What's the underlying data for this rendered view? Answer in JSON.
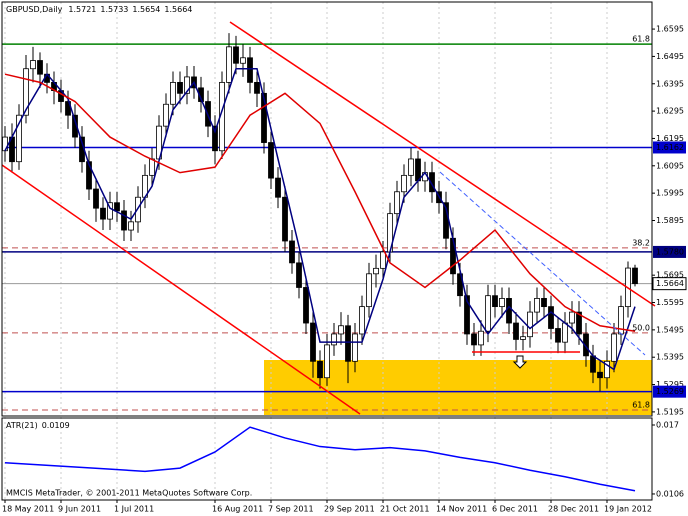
{
  "chart_data": {
    "type": "candlestick",
    "title": "GBPUSD,Daily",
    "watermark": "MMCIS MetaTrader, © 2001-2011 MetaQuotes Software Corp.",
    "categories": [
      "18 May 2011",
      null,
      null,
      null,
      null,
      null,
      null,
      null,
      "9 Jun 2011",
      null,
      null,
      null,
      null,
      null,
      null,
      null,
      "1 Jul 2011",
      null,
      null,
      null,
      null,
      null,
      null,
      null,
      null,
      null,
      null,
      null,
      null,
      null,
      "16 Aug 2011",
      null,
      null,
      null,
      null,
      null,
      null,
      null,
      "7 Sep 2011",
      null,
      null,
      null,
      null,
      null,
      null,
      null,
      "29 Sep 2011",
      null,
      null,
      null,
      null,
      null,
      null,
      null,
      "21 Oct 2011",
      null,
      null,
      null,
      null,
      null,
      null,
      null,
      "14 Nov 2011",
      null,
      null,
      null,
      null,
      null,
      null,
      null,
      "6 Dec 2011",
      null,
      null,
      null,
      null,
      null,
      null,
      null,
      "28 Dec 2011",
      null,
      null,
      null,
      null,
      null,
      null,
      null,
      "19 Jan 2012",
      null,
      null,
      null,
      null
    ],
    "open": [
      1.615,
      1.62,
      1.611,
      1.628,
      1.645,
      1.648,
      1.643,
      1.64,
      1.637,
      1.633,
      1.628,
      1.62,
      1.611,
      1.601,
      1.594,
      1.59,
      1.596,
      1.593,
      1.586,
      1.589,
      1.598,
      1.606,
      1.612,
      1.624,
      1.632,
      1.64,
      1.636,
      1.642,
      1.638,
      1.633,
      1.624,
      1.615,
      1.64,
      1.653,
      1.647,
      1.649,
      1.64,
      1.636,
      1.618,
      1.605,
      1.598,
      1.582,
      1.574,
      1.565,
      1.552,
      1.538,
      1.532,
      1.544,
      1.548,
      1.551,
      1.538,
      1.548,
      1.558,
      1.57,
      1.572,
      1.578,
      1.592,
      1.6,
      1.606,
      1.612,
      1.604,
      1.607,
      1.6,
      1.596,
      1.583,
      1.57,
      1.562,
      1.548,
      1.544,
      1.549,
      1.562,
      1.558,
      1.561,
      1.552,
      1.546,
      1.547,
      1.556,
      1.561,
      1.558,
      1.55,
      1.545,
      1.552,
      1.556,
      1.548,
      1.54,
      1.534,
      1.532,
      1.538,
      1.548,
      1.558,
      1.5721
    ],
    "high": [
      1.624,
      1.625,
      1.632,
      1.65,
      1.653,
      1.651,
      1.647,
      1.644,
      1.641,
      1.637,
      1.632,
      1.624,
      1.615,
      1.605,
      1.598,
      1.6,
      1.6,
      1.597,
      1.593,
      1.602,
      1.61,
      1.616,
      1.628,
      1.636,
      1.644,
      1.644,
      1.646,
      1.646,
      1.642,
      1.637,
      1.628,
      1.644,
      1.658,
      1.657,
      1.654,
      1.653,
      1.644,
      1.64,
      1.622,
      1.609,
      1.602,
      1.586,
      1.578,
      1.569,
      1.556,
      1.542,
      1.548,
      1.552,
      1.556,
      1.555,
      1.552,
      1.562,
      1.574,
      1.577,
      1.582,
      1.596,
      1.604,
      1.61,
      1.616,
      1.615,
      1.611,
      1.611,
      1.604,
      1.6,
      1.587,
      1.574,
      1.566,
      1.552,
      1.553,
      1.566,
      1.566,
      1.565,
      1.565,
      1.556,
      1.551,
      1.56,
      1.565,
      1.565,
      1.562,
      1.554,
      1.556,
      1.56,
      1.56,
      1.552,
      1.544,
      1.538,
      1.542,
      1.552,
      1.562,
      1.5745,
      1.5733
    ],
    "low": [
      1.611,
      1.607,
      1.608,
      1.625,
      1.64,
      1.638,
      1.636,
      1.632,
      1.629,
      1.623,
      1.616,
      1.607,
      1.597,
      1.589,
      1.586,
      1.586,
      1.589,
      1.582,
      1.582,
      1.585,
      1.594,
      1.602,
      1.608,
      1.62,
      1.628,
      1.632,
      1.632,
      1.634,
      1.629,
      1.62,
      1.61,
      1.612,
      1.636,
      1.643,
      1.642,
      1.636,
      1.631,
      1.614,
      1.601,
      1.594,
      1.578,
      1.57,
      1.561,
      1.548,
      1.532,
      1.528,
      1.529,
      1.54,
      1.544,
      1.53,
      1.534,
      1.544,
      1.554,
      1.565,
      1.568,
      1.574,
      1.588,
      1.596,
      1.602,
      1.6,
      1.6,
      1.596,
      1.592,
      1.579,
      1.566,
      1.558,
      1.544,
      1.54,
      1.54,
      1.545,
      1.554,
      1.554,
      1.548,
      1.542,
      1.542,
      1.543,
      1.552,
      1.554,
      1.546,
      1.541,
      1.541,
      1.548,
      1.544,
      1.536,
      1.53,
      1.527,
      1.528,
      1.534,
      1.544,
      1.554,
      1.5654
    ],
    "close": [
      1.62,
      1.611,
      1.628,
      1.645,
      1.648,
      1.643,
      1.64,
      1.637,
      1.633,
      1.628,
      1.62,
      1.611,
      1.601,
      1.594,
      1.59,
      1.596,
      1.593,
      1.586,
      1.589,
      1.598,
      1.606,
      1.612,
      1.624,
      1.632,
      1.64,
      1.636,
      1.642,
      1.638,
      1.633,
      1.624,
      1.615,
      1.64,
      1.653,
      1.647,
      1.649,
      1.64,
      1.636,
      1.618,
      1.605,
      1.598,
      1.582,
      1.574,
      1.565,
      1.552,
      1.538,
      1.532,
      1.544,
      1.548,
      1.551,
      1.538,
      1.548,
      1.558,
      1.57,
      1.572,
      1.578,
      1.592,
      1.6,
      1.606,
      1.612,
      1.604,
      1.607,
      1.6,
      1.596,
      1.583,
      1.57,
      1.562,
      1.548,
      1.544,
      1.549,
      1.562,
      1.558,
      1.561,
      1.552,
      1.546,
      1.547,
      1.556,
      1.561,
      1.558,
      1.55,
      1.545,
      1.552,
      1.556,
      1.548,
      1.54,
      1.534,
      1.532,
      1.538,
      1.548,
      1.558,
      1.5721,
      1.5664
    ],
    "ylim": [
      1.518,
      1.6694
    ],
    "yticks": [
      1.6595,
      1.6495,
      1.6395,
      1.6295,
      1.6195,
      1.6095,
      1.5995,
      1.5895,
      1.5695,
      1.5595,
      1.5495,
      1.5395,
      1.5295,
      1.5195
    ],
    "overlays": [
      {
        "color": "#000080",
        "x": [
          0,
          3,
          6,
          9,
          12,
          15,
          18,
          21,
          24,
          27,
          30,
          33,
          36,
          39,
          42,
          45,
          48,
          51,
          54,
          57,
          60,
          63,
          66,
          69,
          72,
          75,
          78,
          81,
          84,
          87,
          90
        ],
        "values": [
          1.615,
          1.63,
          1.643,
          1.634,
          1.61,
          1.594,
          1.59,
          1.602,
          1.63,
          1.64,
          1.622,
          1.645,
          1.645,
          1.612,
          1.58,
          1.545,
          1.545,
          1.545,
          1.568,
          1.598,
          1.607,
          1.594,
          1.56,
          1.548,
          1.558,
          1.55,
          1.556,
          1.55,
          1.54,
          1.535,
          1.558
        ]
      },
      {
        "color": "#e00000",
        "x": [
          0,
          5,
          10,
          15,
          20,
          25,
          30,
          35,
          40,
          45,
          50,
          55,
          60,
          65,
          70,
          75,
          80,
          85,
          90
        ],
        "values": [
          1.643,
          1.64,
          1.633,
          1.62,
          1.613,
          1.607,
          1.609,
          1.628,
          1.636,
          1.625,
          1.6,
          1.574,
          1.565,
          1.575,
          1.586,
          1.57,
          1.558,
          1.551,
          1.549
        ]
      }
    ],
    "levels": [
      {
        "value": 1.6162,
        "color": "#0000cc"
      },
      {
        "value": 1.578,
        "label": "1.5780",
        "color": "#000080"
      },
      {
        "value": 1.5269,
        "color": "#0000cc"
      }
    ],
    "fib_levels": [
      {
        "value": 1.654,
        "label": "61.8",
        "color": "#008000"
      },
      {
        "value": 1.5795,
        "label": "38.2",
        "color": "#c05050"
      },
      {
        "value": 1.5484,
        "label": "50.0",
        "color": "#c05050"
      },
      {
        "value": 1.5202,
        "label": "61.8",
        "color": "#c05050"
      }
    ],
    "atr": {
      "title": "ATR(21)",
      "color": "#0000ff",
      "x": [
        0,
        5,
        10,
        15,
        20,
        25,
        30,
        35,
        40,
        45,
        50,
        55,
        60,
        65,
        70,
        75,
        80,
        85,
        90
      ],
      "values": [
        0.0135,
        0.0133,
        0.0131,
        0.0129,
        0.0127,
        0.013,
        0.0145,
        0.0168,
        0.0158,
        0.015,
        0.0147,
        0.0149,
        0.0146,
        0.014,
        0.0135,
        0.0128,
        0.0122,
        0.0115,
        0.0109
      ],
      "ylim": [
        0.01004,
        0.01765
      ],
      "yticks": [
        0.017,
        0.0106
      ]
    }
  }
}
